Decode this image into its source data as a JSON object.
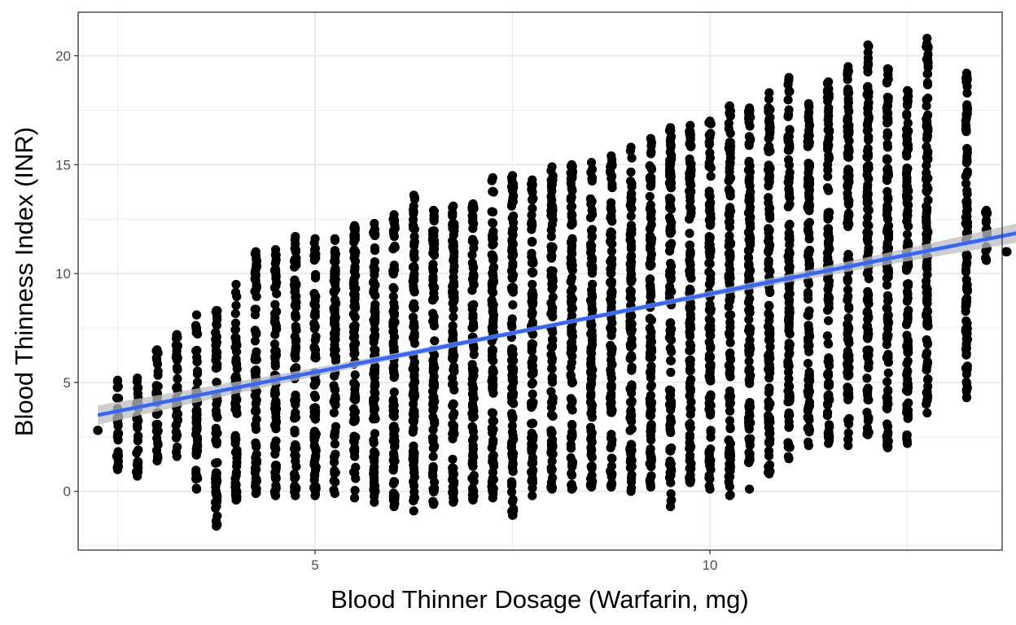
{
  "chart_data": {
    "type": "scatter",
    "title": "",
    "xlabel": "Blood Thinner Dosage (Warfarin, mg)",
    "ylabel": "Blood Thinness Index (INR)",
    "xlim": [
      2.0,
      13.7
    ],
    "ylim": [
      -2.7,
      22.0
    ],
    "x_ticks": [
      5,
      10
    ],
    "x_tick_labels": [
      "5",
      "10"
    ],
    "y_ticks": [
      0,
      5,
      10,
      15,
      20
    ],
    "y_tick_labels": [
      "0",
      "5",
      "10",
      "15",
      "20"
    ],
    "grid": true,
    "legend": "none",
    "colors": {
      "points": "#000000",
      "fit_line": "#3366ff",
      "confidence_band": "#bdbdbd",
      "grid": "#ebebeb",
      "panel_border": "#333333"
    },
    "columns": [
      {
        "x": 2.25,
        "y_min": 2.8,
        "y_max": 2.8
      },
      {
        "x": 2.5,
        "y_min": 1.0,
        "y_max": 5.1
      },
      {
        "x": 2.75,
        "y_min": 0.7,
        "y_max": 5.2
      },
      {
        "x": 3.0,
        "y_min": 1.4,
        "y_max": 6.5
      },
      {
        "x": 3.25,
        "y_min": 1.6,
        "y_max": 7.2
      },
      {
        "x": 3.5,
        "y_min": 0.1,
        "y_max": 8.1
      },
      {
        "x": 3.75,
        "y_min": -1.6,
        "y_max": 8.3
      },
      {
        "x": 4.0,
        "y_min": -0.4,
        "y_max": 9.5
      },
      {
        "x": 4.25,
        "y_min": -0.1,
        "y_max": 11.0
      },
      {
        "x": 4.5,
        "y_min": -0.2,
        "y_max": 11.1
      },
      {
        "x": 4.75,
        "y_min": -0.2,
        "y_max": 11.7
      },
      {
        "x": 5.0,
        "y_min": -0.2,
        "y_max": 11.6
      },
      {
        "x": 5.25,
        "y_min": -0.1,
        "y_max": 11.6
      },
      {
        "x": 5.5,
        "y_min": -0.3,
        "y_max": 12.2
      },
      {
        "x": 5.75,
        "y_min": -0.5,
        "y_max": 12.3
      },
      {
        "x": 6.0,
        "y_min": -0.7,
        "y_max": 12.7
      },
      {
        "x": 6.25,
        "y_min": -0.9,
        "y_max": 13.6
      },
      {
        "x": 6.5,
        "y_min": -0.6,
        "y_max": 12.9
      },
      {
        "x": 6.75,
        "y_min": -0.5,
        "y_max": 13.1
      },
      {
        "x": 7.0,
        "y_min": -0.4,
        "y_max": 13.2
      },
      {
        "x": 7.25,
        "y_min": -0.3,
        "y_max": 14.4
      },
      {
        "x": 7.5,
        "y_min": -1.1,
        "y_max": 14.5
      },
      {
        "x": 7.75,
        "y_min": -0.2,
        "y_max": 14.3
      },
      {
        "x": 8.0,
        "y_min": 0.1,
        "y_max": 14.9
      },
      {
        "x": 8.25,
        "y_min": 0.1,
        "y_max": 15.0
      },
      {
        "x": 8.5,
        "y_min": 0.2,
        "y_max": 15.1
      },
      {
        "x": 8.75,
        "y_min": 0.2,
        "y_max": 15.4
      },
      {
        "x": 9.0,
        "y_min": 0.0,
        "y_max": 15.8
      },
      {
        "x": 9.25,
        "y_min": 0.2,
        "y_max": 16.2
      },
      {
        "x": 9.5,
        "y_min": -0.7,
        "y_max": 16.7
      },
      {
        "x": 9.75,
        "y_min": 0.4,
        "y_max": 16.8
      },
      {
        "x": 10.0,
        "y_min": 0.1,
        "y_max": 17.0
      },
      {
        "x": 10.25,
        "y_min": -0.2,
        "y_max": 17.7
      },
      {
        "x": 10.5,
        "y_min": 0.1,
        "y_max": 17.6
      },
      {
        "x": 10.75,
        "y_min": 0.8,
        "y_max": 18.3
      },
      {
        "x": 11.0,
        "y_min": 1.5,
        "y_max": 19.0
      },
      {
        "x": 11.25,
        "y_min": 2.1,
        "y_max": 17.8
      },
      {
        "x": 11.5,
        "y_min": 2.2,
        "y_max": 18.8
      },
      {
        "x": 11.75,
        "y_min": 2.1,
        "y_max": 19.5
      },
      {
        "x": 12.0,
        "y_min": 2.6,
        "y_max": 20.5
      },
      {
        "x": 12.25,
        "y_min": 2.0,
        "y_max": 19.4
      },
      {
        "x": 12.5,
        "y_min": 2.2,
        "y_max": 18.4
      },
      {
        "x": 12.75,
        "y_min": 3.6,
        "y_max": 20.8
      },
      {
        "x": 13.25,
        "y_min": 4.3,
        "y_max": 19.2
      },
      {
        "x": 13.5,
        "y_min": 10.6,
        "y_max": 12.9
      },
      {
        "x": 13.75,
        "y_min": 11.0,
        "y_max": 11.0
      }
    ],
    "fit_line": {
      "x": [
        2.25,
        13.95
      ],
      "y": [
        3.5,
        11.9
      ],
      "band_halfwidth_ends": 0.45,
      "band_halfwidth_center": 0.1
    }
  }
}
